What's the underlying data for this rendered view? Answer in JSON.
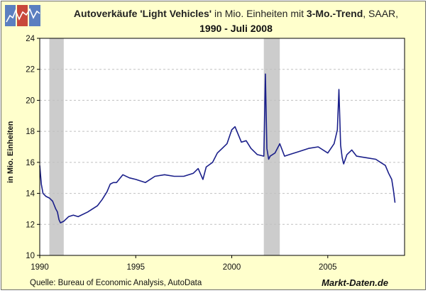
{
  "header": {
    "title_bold": "Autoverkäufe 'Light Vehicles'",
    "title_normal1": " in Mio. Einheiten mit ",
    "title_bold2": "3-Mo.-Trend",
    "title_normal2": ", SAAR,",
    "subtitle": "1990 - Juli 2008"
  },
  "footer": {
    "source": "Quelle: Bureau of Economic Analysis, AutoData",
    "brand": "Markt-Daten.de"
  },
  "colors": {
    "background": "#ffffcc",
    "plot_background": "#ffffff",
    "series": "#1a1f8a",
    "recession": "#cccccc",
    "grid": "#c0c0c0"
  },
  "chart_data": {
    "type": "line",
    "title": "Autoverkäufe 'Light Vehicles' in Mio. Einheiten mit 3-Mo.-Trend, SAAR, 1990 - Juli 2008",
    "ylabel": "in Mio. Einheiten",
    "xlabel": "",
    "xlim": [
      1990,
      2009
    ],
    "ylim": [
      10,
      24
    ],
    "x_ticks": [
      1990,
      1995,
      2000,
      2005
    ],
    "y_ticks": [
      10,
      12,
      14,
      16,
      18,
      20,
      22,
      24
    ],
    "grid": "horizontal dashed",
    "recessions": [
      {
        "start": 1990.5,
        "end": 1991.25
      },
      {
        "start": 2001.67,
        "end": 2002.5
      }
    ],
    "series": [
      {
        "x": [
          1990.0,
          1990.08,
          1990.17,
          1990.25,
          1990.33,
          1990.5,
          1990.67,
          1990.83,
          1990.92,
          1991.0,
          1991.08,
          1991.25,
          1991.5,
          1991.75,
          1992.0,
          1992.5,
          1993.0,
          1993.25,
          1993.5,
          1993.67,
          1993.83,
          1994.0,
          1994.33,
          1994.67,
          1995.0,
          1995.5,
          1996.0,
          1996.5,
          1997.0,
          1997.5,
          1998.0,
          1998.25,
          1998.5,
          1998.67,
          1999.0,
          1999.25,
          1999.5,
          1999.75,
          2000.0,
          2000.17,
          2000.5,
          2000.75,
          2001.0,
          2001.33,
          2001.67,
          2001.75,
          2001.83,
          2001.92,
          2002.0,
          2002.25,
          2002.5,
          2002.75,
          2003.0,
          2003.5,
          2004.0,
          2004.5,
          2005.0,
          2005.33,
          2005.5,
          2005.58,
          2005.67,
          2005.75,
          2005.83,
          2006.0,
          2006.25,
          2006.5,
          2007.0,
          2007.5,
          2007.75,
          2008.0,
          2008.17,
          2008.33,
          2008.42,
          2008.5
        ],
        "values": [
          15.8,
          14.6,
          14.0,
          13.9,
          13.8,
          13.7,
          13.5,
          13.0,
          12.8,
          12.3,
          12.1,
          12.2,
          12.5,
          12.6,
          12.5,
          12.8,
          13.2,
          13.6,
          14.1,
          14.6,
          14.7,
          14.7,
          15.2,
          15.0,
          14.9,
          14.7,
          15.1,
          15.2,
          15.1,
          15.1,
          15.3,
          15.6,
          14.9,
          15.7,
          16.0,
          16.6,
          16.9,
          17.2,
          18.1,
          18.3,
          17.3,
          17.4,
          16.9,
          16.5,
          16.4,
          21.7,
          16.9,
          16.2,
          16.4,
          16.6,
          17.2,
          16.4,
          16.5,
          16.7,
          16.9,
          17.0,
          16.6,
          17.2,
          18.1,
          20.7,
          17.1,
          16.3,
          15.9,
          16.5,
          16.8,
          16.4,
          16.3,
          16.2,
          16.0,
          15.8,
          15.3,
          14.9,
          14.2,
          13.4
        ]
      }
    ]
  }
}
